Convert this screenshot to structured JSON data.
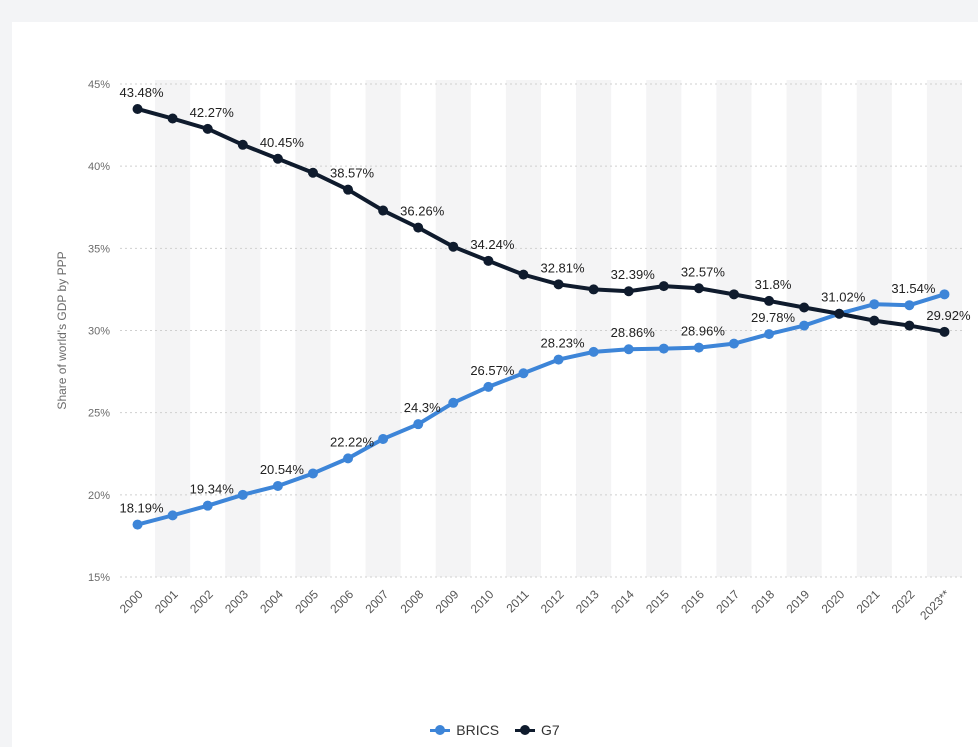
{
  "chart_data": {
    "type": "line",
    "ylabel": "Share of world's GDP by PPP",
    "xlabel": "",
    "ylim": [
      15,
      45
    ],
    "yticks": [
      15,
      20,
      25,
      30,
      35,
      40,
      45
    ],
    "ytick_labels": [
      "15%",
      "20%",
      "25%",
      "30%",
      "35%",
      "40%",
      "45%"
    ],
    "grid": true,
    "legend_position": "bottom-center",
    "categories": [
      "2000",
      "2001",
      "2002",
      "2003",
      "2004",
      "2005",
      "2006",
      "2007",
      "2008",
      "2009",
      "2010",
      "2011",
      "2012",
      "2013",
      "2014",
      "2015",
      "2016",
      "2017",
      "2018",
      "2019",
      "2020",
      "2021",
      "2022",
      "2023**"
    ],
    "series": [
      {
        "name": "BRICS",
        "color": "#3d85d8",
        "values": [
          18.19,
          18.75,
          19.34,
          20.0,
          20.54,
          21.3,
          22.22,
          23.4,
          24.3,
          25.6,
          26.57,
          27.4,
          28.23,
          28.7,
          28.86,
          28.9,
          28.96,
          29.2,
          29.78,
          30.3,
          31.02,
          31.6,
          31.54,
          32.2
        ],
        "labels": [
          "18.19%",
          "",
          "19.34%",
          "",
          "20.54%",
          "",
          "22.22%",
          "",
          "24.3%",
          "",
          "26.57%",
          "",
          "28.23%",
          "",
          "28.86%",
          "",
          "28.96%",
          "",
          "29.78%",
          "",
          "",
          "",
          "31.54%",
          ""
        ]
      },
      {
        "name": "G7",
        "color": "#0f1b2d",
        "values": [
          43.48,
          42.9,
          42.27,
          41.3,
          40.45,
          39.6,
          38.57,
          37.3,
          36.26,
          35.1,
          34.24,
          33.4,
          32.81,
          32.5,
          32.39,
          32.7,
          32.57,
          32.2,
          31.8,
          31.4,
          31.02,
          30.6,
          30.3,
          29.92
        ],
        "labels": [
          "43.48%",
          "",
          "42.27%",
          "",
          "40.45%",
          "",
          "38.57%",
          "",
          "36.26%",
          "",
          "34.24%",
          "",
          "32.81%",
          "",
          "32.39%",
          "",
          "32.57%",
          "",
          "31.8%",
          "",
          "31.02%",
          "",
          "",
          "29.92%"
        ]
      }
    ]
  }
}
